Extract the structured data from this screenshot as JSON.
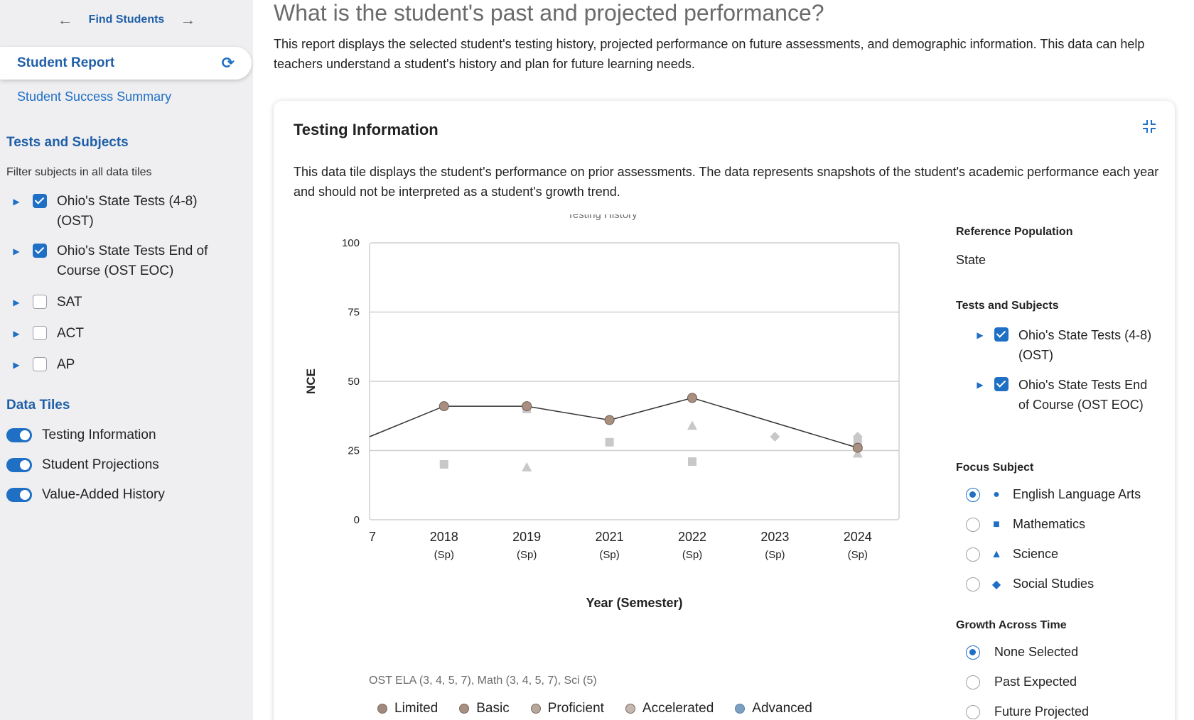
{
  "sidebar": {
    "nav": {
      "label": "Find Students",
      "back_icon": "arrow-left-icon",
      "fwd_icon": "arrow-right-icon"
    },
    "active_tab": "Student Report",
    "success_link": "Student Success Summary",
    "tests_title": "Tests and Subjects",
    "filter_note": "Filter subjects in all data tiles",
    "tests": [
      {
        "label": "Ohio's State Tests (4-8) (OST)",
        "checked": true
      },
      {
        "label": "Ohio's State Tests End of Course (OST EOC)",
        "checked": true
      },
      {
        "label": "SAT",
        "checked": false
      },
      {
        "label": "ACT",
        "checked": false
      },
      {
        "label": "AP",
        "checked": false
      }
    ],
    "tiles_title": "Data Tiles",
    "tiles": [
      "Testing Information",
      "Student Projections",
      "Value-Added History"
    ]
  },
  "main": {
    "title": "What is the student's past and projected performance?",
    "description": "This report displays the selected student's testing history, projected performance on future assessments, and demographic information. This data can help teachers understand a student's history and plan for future learning needs."
  },
  "card": {
    "title": "Testing Information",
    "description": "This data tile displays the student's performance on prior assessments. The data represents snapshots of the student's academic performance each year and should not be interpreted as a student's growth trend.",
    "caption": "OST ELA (3, 4, 5, 7), Math (3, 4, 5, 7), Sci (5)",
    "legend": [
      "Limited",
      "Basic",
      "Proficient",
      "Accelerated",
      "Advanced"
    ]
  },
  "right_panel": {
    "ref_title": "Reference Population",
    "ref_value": "State",
    "tests_title": "Tests and Subjects",
    "tests": [
      "Ohio's State Tests (4-8) (OST)",
      "Ohio's State Tests End of Course (OST EOC)"
    ],
    "focus_title": "Focus Subject",
    "focus": [
      {
        "label": "English Language Arts",
        "symbol": "●",
        "selected": true
      },
      {
        "label": "Mathematics",
        "symbol": "■",
        "selected": false
      },
      {
        "label": "Science",
        "symbol": "▲",
        "selected": false
      },
      {
        "label": "Social Studies",
        "symbol": "◆",
        "selected": false
      }
    ],
    "growth_title": "Growth Across Time",
    "growth": [
      {
        "label": "None Selected",
        "selected": true
      },
      {
        "label": "Past Expected",
        "selected": false
      },
      {
        "label": "Future Projected",
        "selected": false
      }
    ]
  },
  "chart_data": {
    "type": "line",
    "title": "Testing History",
    "xlabel": "Year (Semester)",
    "ylabel": "NCE",
    "ylim": [
      0,
      100
    ],
    "yticks": [
      0,
      25,
      50,
      75,
      100
    ],
    "categories": [
      {
        "year": "2018",
        "term": "(Sp)"
      },
      {
        "year": "2019",
        "term": "(Sp)"
      },
      {
        "year": "2021",
        "term": "(Sp)"
      },
      {
        "year": "2022",
        "term": "(Sp)"
      },
      {
        "year": "2023",
        "term": "(Sp)"
      },
      {
        "year": "2024",
        "term": "(Sp)"
      }
    ],
    "clipped_left_label": "7",
    "clipped_left_value": 30,
    "series": [
      {
        "subject": "English Language Arts",
        "marker": "circle",
        "values": [
          41,
          41,
          36,
          44,
          null,
          26
        ]
      },
      {
        "subject": "Mathematics",
        "marker": "square",
        "values": [
          20,
          40,
          28,
          21,
          null,
          28
        ]
      },
      {
        "subject": "Science",
        "marker": "triangle",
        "values": [
          null,
          19,
          null,
          34,
          null,
          24
        ]
      },
      {
        "subject": "Social Studies",
        "marker": "diamond",
        "values": [
          null,
          null,
          null,
          null,
          30,
          30
        ]
      }
    ],
    "grid": true
  }
}
